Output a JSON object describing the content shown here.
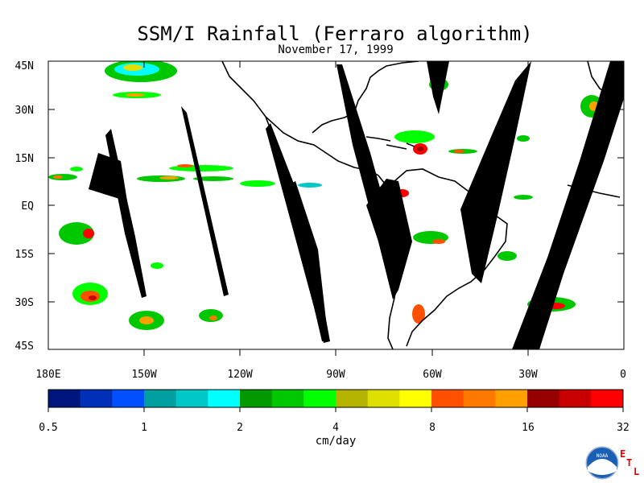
{
  "title": "SSM/I Rainfall (Ferraro algorithm)",
  "subtitle": "November 17, 1999",
  "lat_labels": [
    "45N",
    "30N",
    "15N",
    "EQ",
    "15S",
    "30S",
    "45S"
  ],
  "lon_labels": [
    "180E",
    "150W",
    "120W",
    "90W",
    "60W",
    "30W",
    "0"
  ],
  "colorbar": {
    "colors": [
      "#00167f",
      "#0030b8",
      "#0050ff",
      "#00a0a0",
      "#00c8c8",
      "#00ffff",
      "#009900",
      "#00c800",
      "#00ff00",
      "#b4b400",
      "#e0e000",
      "#ffff00",
      "#ff5000",
      "#ff7800",
      "#ffa000",
      "#960000",
      "#c80000",
      "#ff0000"
    ],
    "tick_labels": [
      "0.5",
      "1",
      "2",
      "4",
      "8",
      "16",
      "32"
    ]
  },
  "units_label": "cm/day",
  "logo": {
    "text": "NOAA",
    "letters": [
      "E",
      "T",
      "L"
    ],
    "letter_color": "#e00000"
  }
}
